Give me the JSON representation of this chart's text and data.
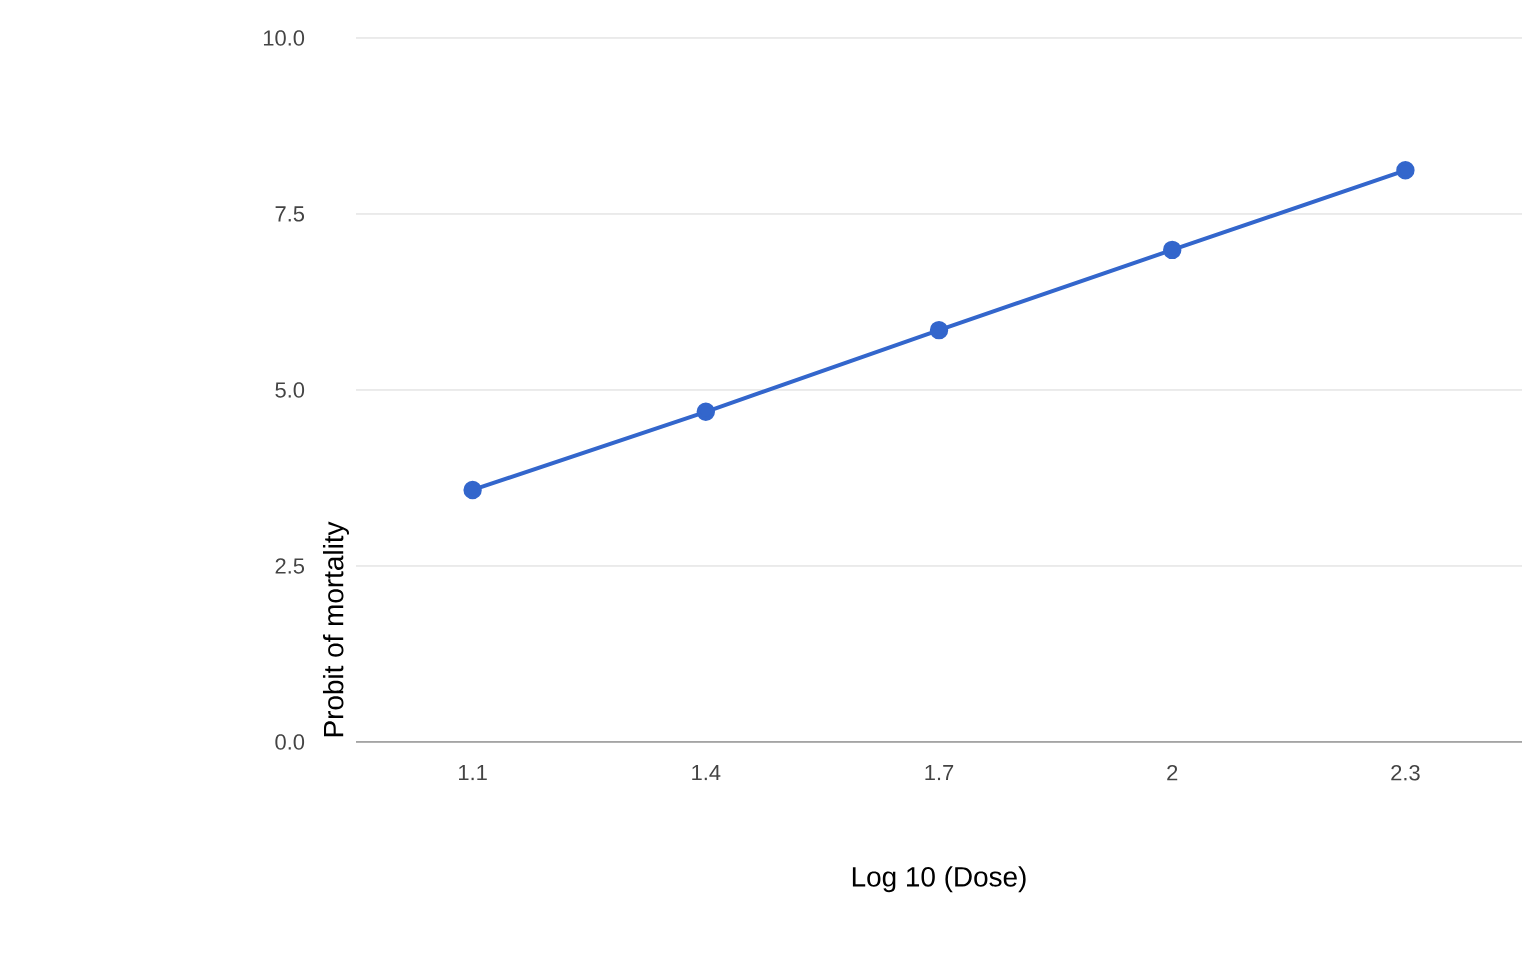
{
  "chart_data": {
    "type": "line",
    "xlabel": "Log 10 (Dose)",
    "ylabel": "Probit of mortality",
    "categories": [
      "1.1",
      "1.4",
      "1.7",
      "2",
      "2.3"
    ],
    "series": [
      {
        "color": "#3366cc",
        "values": [
          3.58,
          4.69,
          5.85,
          6.99,
          8.12
        ]
      }
    ],
    "ylim": [
      0,
      10
    ],
    "yticks": [
      {
        "value": 0,
        "label": "0.0"
      },
      {
        "value": 2.5,
        "label": "2.5"
      },
      {
        "value": 5,
        "label": "5.0"
      },
      {
        "value": 7.5,
        "label": "7.5"
      },
      {
        "value": 10,
        "label": "10.0"
      }
    ],
    "grid": "y",
    "marker": "circle",
    "line_style": "solid"
  }
}
